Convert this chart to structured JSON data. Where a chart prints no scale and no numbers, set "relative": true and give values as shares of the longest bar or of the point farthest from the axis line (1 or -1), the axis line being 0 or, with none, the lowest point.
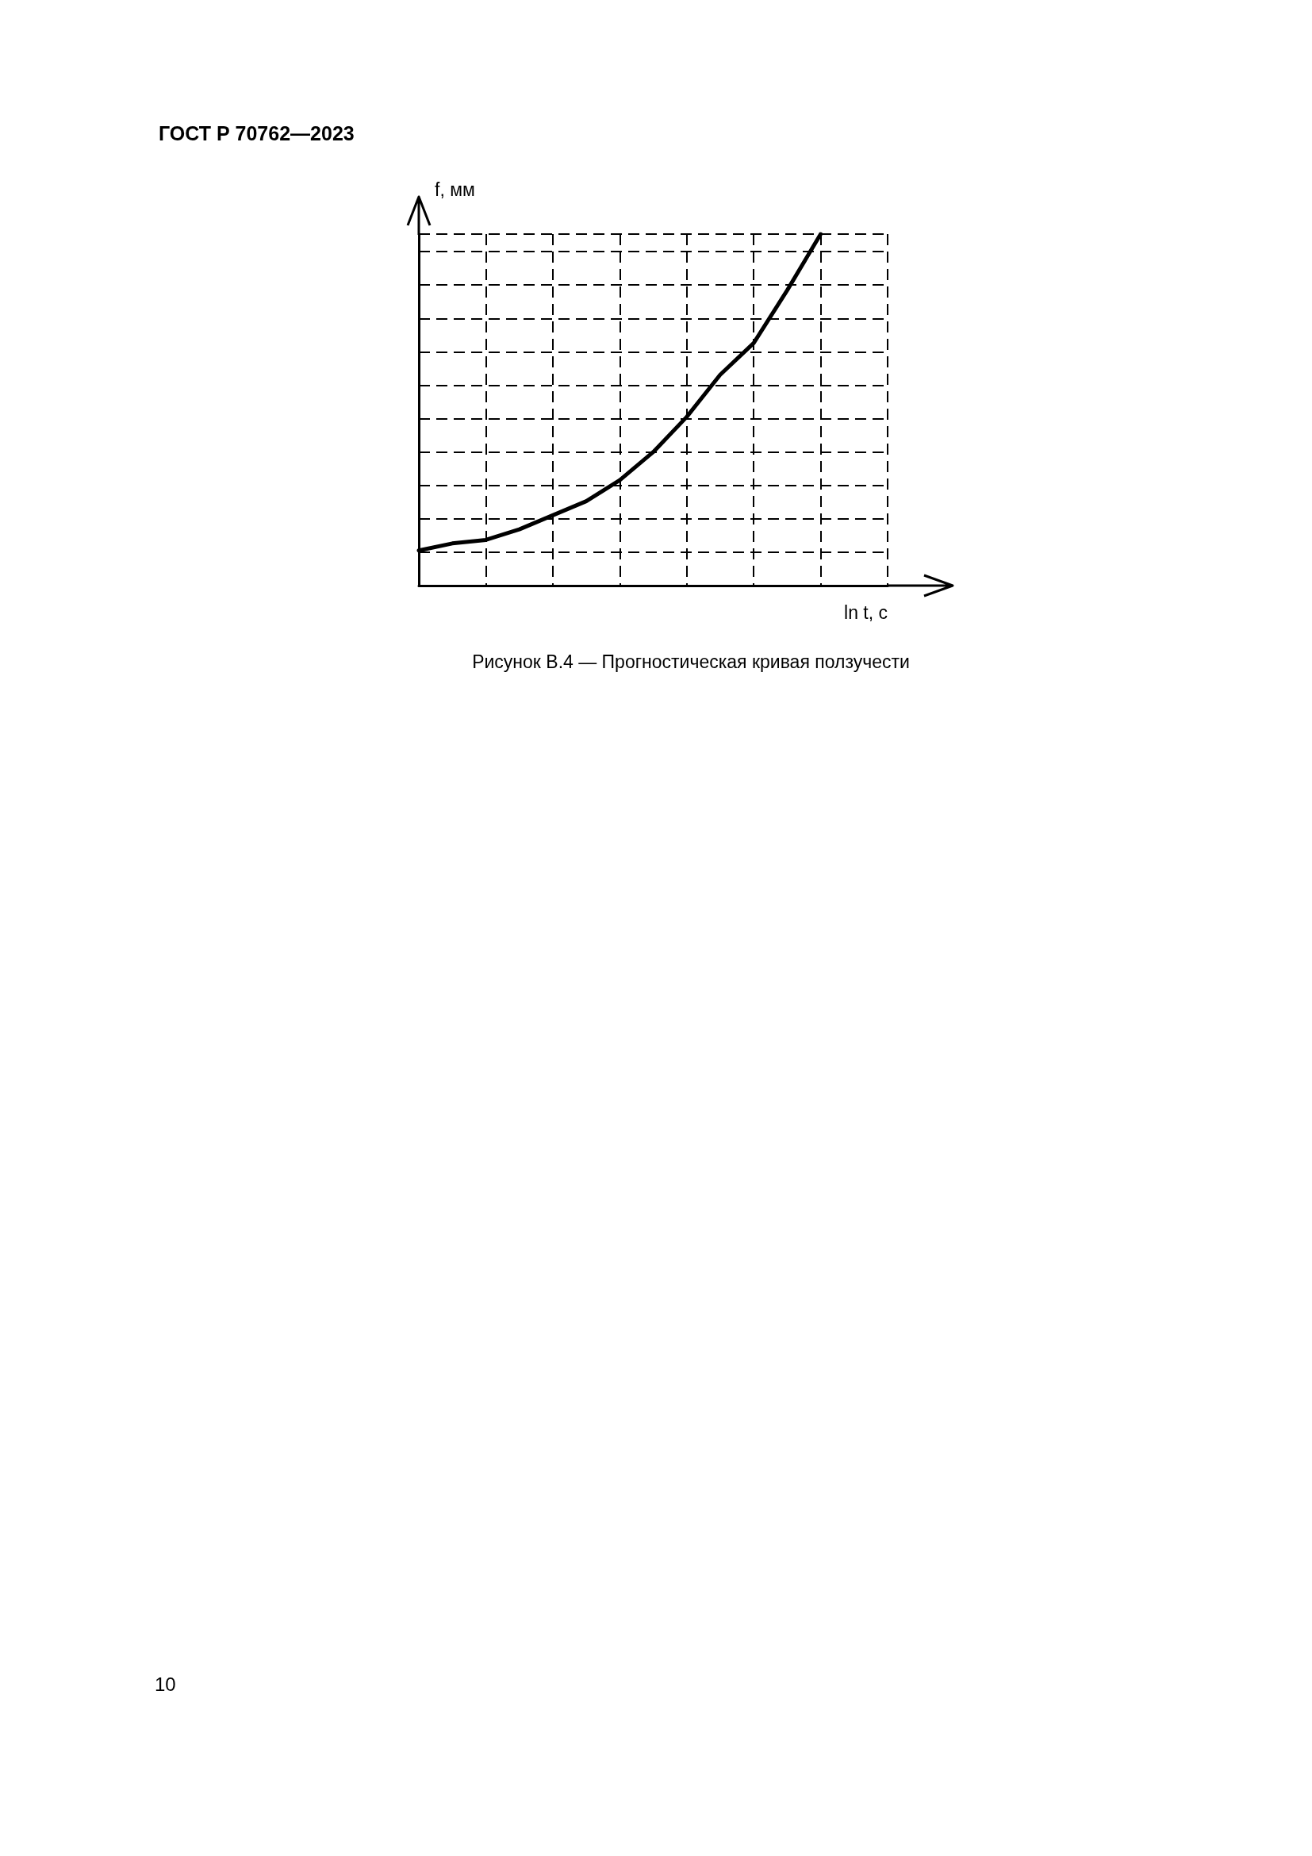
{
  "chart_data": {
    "type": "line",
    "title": "ГОСТ Р 70762—2023",
    "subtitle": "Рисунок В.4 — Прогностическая кривая ползучести",
    "annotations": [
      "10"
    ],
    "xlabel": "ln t, c",
    "ylabel": "f, мм",
    "relative": true,
    "grid": true,
    "marker": "none",
    "line_style": "solid",
    "categories": [
      null,
      null,
      null,
      null,
      null,
      null,
      null,
      null,
      null,
      null,
      null,
      null,
      null
    ],
    "series": [
      {
        "color": "#000000",
        "values": [
          0.1,
          0.12,
          0.13,
          0.16,
          0.2,
          0.24,
          0.3,
          0.38,
          0.48,
          0.6,
          0.69,
          0.84,
          1
        ]
      }
    ]
  }
}
